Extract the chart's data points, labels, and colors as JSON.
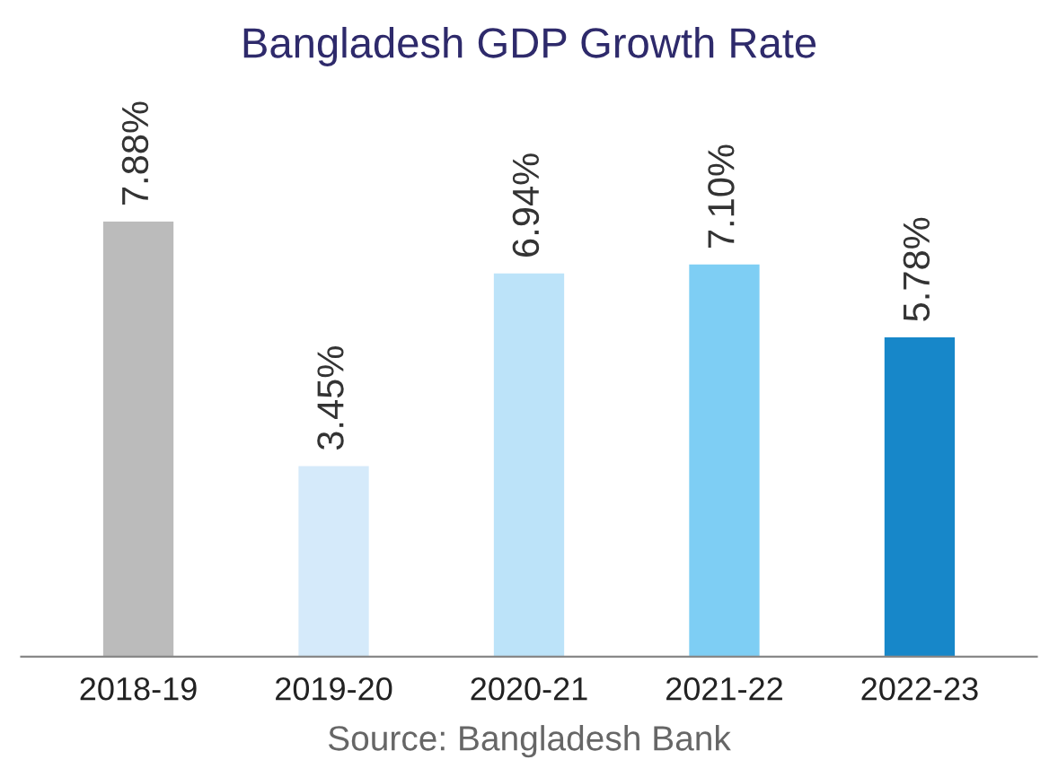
{
  "chart_data": {
    "type": "bar",
    "title": "Bangladesh GDP Growth Rate",
    "categories": [
      "2018-19",
      "2019-20",
      "2020-21",
      "2021-22",
      "2022-23"
    ],
    "values": [
      7.88,
      3.45,
      6.94,
      7.1,
      5.78
    ],
    "colors": [
      "#bbbbbb",
      "#d5eafa",
      "#bce3f9",
      "#7ecef4",
      "#1787c9"
    ],
    "value_labels": [
      "7.88%",
      "3.45%",
      "6.94%",
      "7.10%",
      "5.78%"
    ],
    "annotations": [
      "Source: Bangladesh Bank"
    ],
    "tick_labels": "x"
  }
}
